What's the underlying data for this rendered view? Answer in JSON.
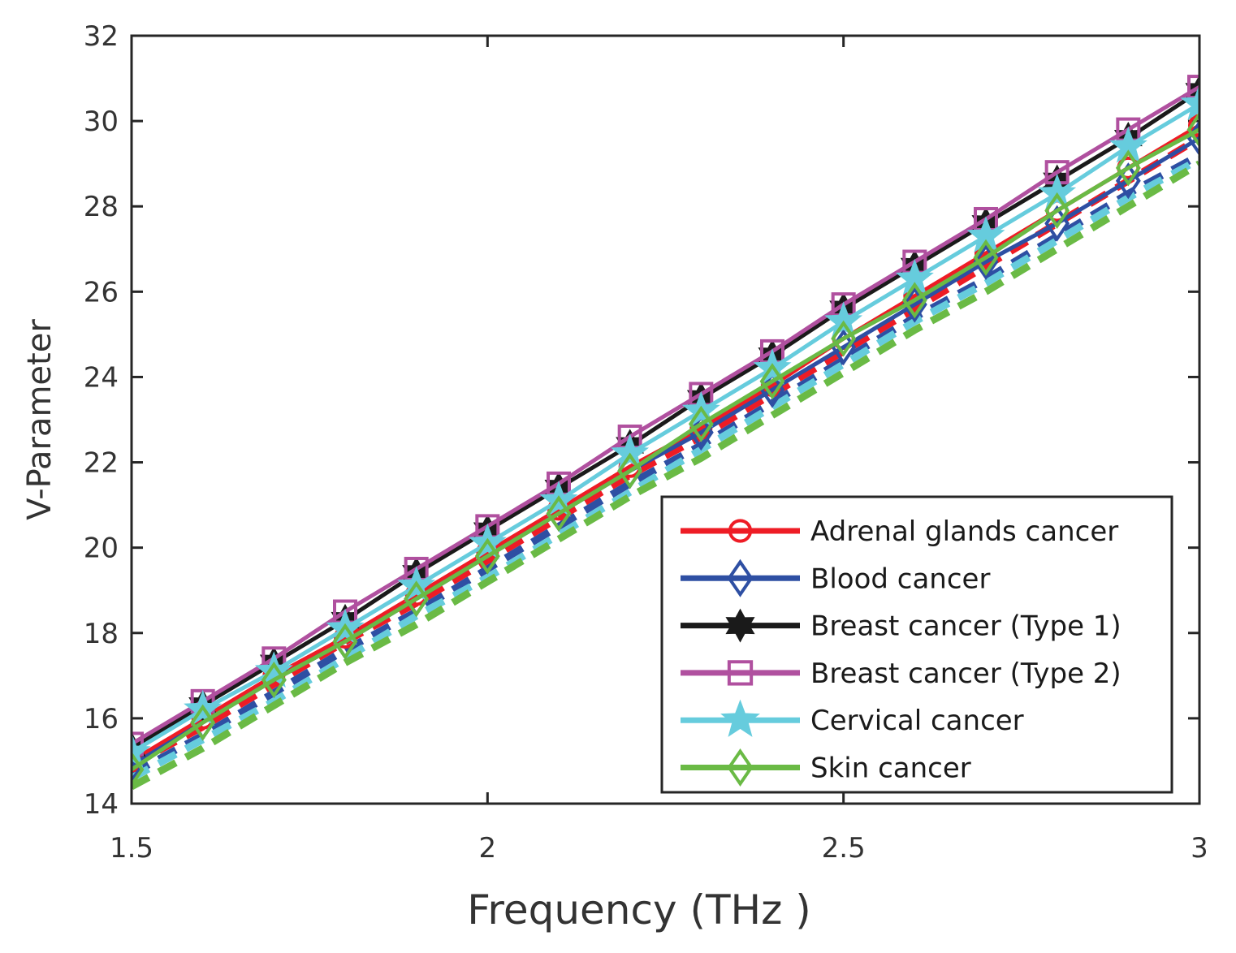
{
  "chart_data": {
    "type": "line",
    "title": "",
    "xlabel": "Frequency (THz )",
    "ylabel": "V-Parameter",
    "xlim": [
      1.5,
      3
    ],
    "ylim": [
      14,
      32
    ],
    "xticks": [
      1.5,
      2,
      2.5,
      3
    ],
    "xtick_labels": [
      "1.5",
      "2",
      "2.5",
      "3"
    ],
    "yticks": [
      14,
      16,
      18,
      20,
      22,
      24,
      26,
      28,
      30,
      32
    ],
    "ytick_labels": [
      "14",
      "16",
      "18",
      "20",
      "22",
      "24",
      "26",
      "28",
      "30",
      "32"
    ],
    "grid": false,
    "legend_position": "bottom-right",
    "x": [
      1.5,
      1.6,
      1.7,
      1.8,
      1.9,
      2.0,
      2.1,
      2.2,
      2.3,
      2.4,
      2.5,
      2.6,
      2.7,
      2.8,
      2.9,
      3.0
    ],
    "series": [
      {
        "name": "Adrenal glands cancer",
        "color": "#ee1c25",
        "marker": "circle",
        "values": [
          15.0,
          16.0,
          17.0,
          17.9,
          18.9,
          19.9,
          20.9,
          21.9,
          22.8,
          23.8,
          24.9,
          25.9,
          26.9,
          27.9,
          28.9,
          29.9
        ],
        "dashed_values": [
          14.9,
          15.8,
          16.8,
          17.8,
          18.7,
          19.7,
          20.7,
          21.7,
          22.6,
          23.6,
          24.6,
          25.6,
          26.6,
          27.6,
          28.6,
          29.6
        ]
      },
      {
        "name": "Blood cancer",
        "color": "#2e4fa3",
        "marker": "diamond",
        "values": [
          14.9,
          15.9,
          16.9,
          17.8,
          18.8,
          19.8,
          20.8,
          21.8,
          22.7,
          23.7,
          24.7,
          25.7,
          26.7,
          27.6,
          28.6,
          29.6
        ],
        "dashed_values": [
          14.7,
          15.6,
          16.6,
          17.6,
          18.5,
          19.5,
          20.5,
          21.5,
          22.4,
          23.4,
          24.4,
          25.4,
          26.3,
          27.3,
          28.3,
          29.2
        ]
      },
      {
        "name": "Breast cancer (Type 1)",
        "color": "#1a1a1a",
        "marker": "hexagram",
        "values": [
          15.3,
          16.3,
          17.3,
          18.3,
          19.4,
          20.4,
          21.4,
          22.4,
          23.5,
          24.5,
          25.6,
          26.6,
          27.6,
          28.6,
          29.6,
          30.7
        ],
        "dashed_values": []
      },
      {
        "name": "Breast cancer (Type 2)",
        "color": "#b0509f",
        "marker": "square",
        "values": [
          15.4,
          16.4,
          17.4,
          18.5,
          19.5,
          20.5,
          21.5,
          22.6,
          23.6,
          24.6,
          25.7,
          26.7,
          27.7,
          28.8,
          29.8,
          30.8
        ],
        "dashed_values": []
      },
      {
        "name": "Cervical cancer",
        "color": "#66ccdd",
        "marker": "pentagram",
        "values": [
          15.2,
          16.2,
          17.1,
          18.1,
          19.1,
          20.1,
          21.1,
          22.2,
          23.2,
          24.2,
          25.3,
          26.3,
          27.3,
          28.3,
          29.4,
          30.4
        ],
        "dashed_values": [
          14.6,
          15.5,
          16.4,
          17.4,
          18.4,
          19.3,
          20.3,
          21.3,
          22.3,
          23.3,
          24.3,
          25.3,
          26.2,
          27.2,
          28.2,
          29.1
        ]
      },
      {
        "name": "Skin cancer",
        "color": "#6aba45",
        "marker": "diamond",
        "values": [
          14.8,
          15.9,
          16.9,
          17.8,
          18.8,
          19.8,
          20.8,
          21.8,
          22.9,
          23.9,
          24.9,
          25.8,
          26.8,
          27.9,
          28.9,
          29.8
        ],
        "dashed_values": [
          14.4,
          15.3,
          16.3,
          17.3,
          18.2,
          19.2,
          20.2,
          21.2,
          22.1,
          23.1,
          24.1,
          25.1,
          26.0,
          27.0,
          28.0,
          29.0
        ]
      }
    ]
  }
}
